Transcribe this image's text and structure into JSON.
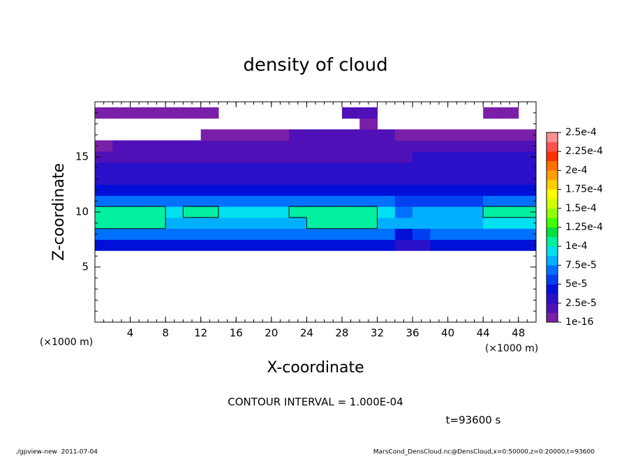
{
  "chart_data": {
    "type": "contour",
    "title": "density of cloud",
    "x_label": "X-coordinate",
    "y_label": "Z-coordinate",
    "x_unit": "(×1000 m)",
    "y_unit": "(×1000 m)",
    "time_label": "t=93600 s",
    "contour_label": "CONTOUR INTERVAL = 1.000E-04",
    "contour_interval": 0.0001,
    "footer_left": "./gpview-new  2011-07-04",
    "footer_right": "MarsCond_DensCloud.nc@DensCloud,x=0:50000,z=0:20000,t=93600",
    "xlim": [
      0,
      50
    ],
    "ylim": [
      0,
      20
    ],
    "xticks": [
      4,
      8,
      12,
      16,
      20,
      24,
      28,
      32,
      36,
      40,
      44,
      48
    ],
    "yticks": [
      5,
      10,
      15
    ],
    "minor_step": 1,
    "x": [
      1,
      3,
      5,
      7,
      9,
      11,
      13,
      15,
      17,
      19,
      21,
      23,
      25,
      27,
      29,
      31,
      33,
      35,
      37,
      39,
      41,
      43,
      45,
      47,
      49
    ],
    "z": [
      7,
      8,
      9,
      10,
      11,
      12,
      13,
      14,
      15,
      16,
      17,
      18,
      19
    ],
    "values": [
      [
        4e-05,
        4e-05,
        4e-05,
        4e-05,
        4e-05,
        4e-05,
        4e-05,
        4e-05,
        4e-05,
        4e-05,
        4e-05,
        4e-05,
        4e-05,
        4e-05,
        4e-05,
        4e-05,
        4e-05,
        3e-05,
        3e-05,
        4e-05,
        4e-05,
        4e-05,
        4e-05,
        4e-05,
        4e-05
      ],
      [
        7e-05,
        7e-05,
        7e-05,
        7e-05,
        7e-05,
        7e-05,
        7e-05,
        7e-05,
        7e-05,
        7e-05,
        7e-05,
        7e-05,
        7e-05,
        7e-05,
        7e-05,
        7e-05,
        7e-05,
        4e-05,
        5e-05,
        7e-05,
        7e-05,
        7e-05,
        7e-05,
        7e-05,
        7e-05
      ],
      [
        0.000105,
        0.000105,
        0.000105,
        0.000105,
        8.5e-05,
        8.5e-05,
        8.5e-05,
        8.5e-05,
        8.5e-05,
        8.5e-05,
        8.5e-05,
        8.5e-05,
        0.000105,
        0.000105,
        0.000105,
        0.000105,
        8.5e-05,
        8e-05,
        8e-05,
        8e-05,
        8e-05,
        8e-05,
        9e-05,
        9e-05,
        9e-05
      ],
      [
        0.00011,
        0.00011,
        0.00011,
        0.00011,
        9e-05,
        0.000102,
        0.000102,
        9e-05,
        9e-05,
        9e-05,
        9e-05,
        0.000102,
        0.00011,
        0.00011,
        0.00011,
        0.00011,
        9.5e-05,
        7e-05,
        8e-05,
        8e-05,
        8e-05,
        8e-05,
        0.000102,
        0.000102,
        0.000102
      ],
      [
        6.5e-05,
        6.5e-05,
        6.5e-05,
        6.5e-05,
        6.5e-05,
        6.5e-05,
        6.5e-05,
        6.5e-05,
        6.5e-05,
        6.5e-05,
        6.5e-05,
        6.5e-05,
        6.5e-05,
        6.5e-05,
        6.5e-05,
        6.5e-05,
        6.5e-05,
        5.5e-05,
        5.5e-05,
        5.5e-05,
        5.5e-05,
        5.5e-05,
        6.5e-05,
        6.5e-05,
        6.5e-05
      ],
      [
        4.5e-05,
        4.5e-05,
        4.5e-05,
        4.5e-05,
        4.5e-05,
        4.5e-05,
        4.5e-05,
        4.5e-05,
        4.5e-05,
        4.5e-05,
        4.5e-05,
        4.5e-05,
        4.5e-05,
        4.5e-05,
        4.5e-05,
        4.5e-05,
        4.5e-05,
        4.5e-05,
        4e-05,
        4e-05,
        4e-05,
        4e-05,
        4e-05,
        4e-05,
        4e-05
      ],
      [
        3.2e-05,
        3.2e-05,
        3.2e-05,
        3.2e-05,
        3.2e-05,
        3.2e-05,
        3.2e-05,
        3.2e-05,
        3.2e-05,
        3.2e-05,
        3.2e-05,
        3.2e-05,
        3.2e-05,
        3.2e-05,
        3.2e-05,
        3.2e-05,
        3.2e-05,
        3.2e-05,
        3.2e-05,
        3.2e-05,
        3.2e-05,
        3.2e-05,
        3.2e-05,
        3.2e-05,
        3.2e-05
      ],
      [
        2.5e-05,
        2.5e-05,
        2.5e-05,
        2.5e-05,
        2.5e-05,
        2.5e-05,
        2.5e-05,
        2.5e-05,
        2.5e-05,
        2.5e-05,
        2.5e-05,
        2.5e-05,
        2.5e-05,
        2.5e-05,
        2.5e-05,
        2.5e-05,
        2.5e-05,
        2.5e-05,
        3e-05,
        3e-05,
        3e-05,
        3e-05,
        3e-05,
        3e-05,
        3e-05
      ],
      [
        2.2e-05,
        2.2e-05,
        2.2e-05,
        2.2e-05,
        2.2e-05,
        2.2e-05,
        2e-05,
        2e-05,
        2e-05,
        2e-05,
        2e-05,
        2e-05,
        2e-05,
        2e-05,
        2e-05,
        2e-05,
        2e-05,
        2e-05,
        2.5e-05,
        2.5e-05,
        2.5e-05,
        2.5e-05,
        2.5e-05,
        2.5e-05,
        2.5e-05
      ],
      [
        1.2e-05,
        1.5e-05,
        1.5e-05,
        1.5e-05,
        1.5e-05,
        1.5e-05,
        1.5e-05,
        1.5e-05,
        1.5e-05,
        1.5e-05,
        1.5e-05,
        2e-05,
        2e-05,
        2e-05,
        2e-05,
        2e-05,
        1.5e-05,
        1.5e-05,
        1.5e-05,
        1.5e-05,
        1.5e-05,
        1.5e-05,
        1.5e-05,
        1.5e-05,
        1.5e-05
      ],
      [
        null,
        null,
        null,
        null,
        null,
        null,
        1e-05,
        1.2e-05,
        1.2e-05,
        1.2e-05,
        1.2e-05,
        1.5e-05,
        1.5e-05,
        1.5e-05,
        1.5e-05,
        1.5e-05,
        1.5e-05,
        1e-05,
        1e-05,
        1e-05,
        1e-05,
        1e-05,
        1e-05,
        1e-05,
        1e-05
      ],
      [
        null,
        null,
        null,
        null,
        null,
        null,
        null,
        null,
        null,
        null,
        null,
        null,
        null,
        null,
        null,
        1.2e-05,
        null,
        null,
        null,
        null,
        null,
        null,
        null,
        null,
        null
      ],
      [
        8e-06,
        8e-06,
        8e-06,
        8e-06,
        8e-06,
        8e-06,
        8e-06,
        null,
        null,
        null,
        null,
        null,
        null,
        null,
        1.5e-05,
        1.5e-05,
        null,
        null,
        null,
        null,
        null,
        null,
        8e-06,
        8e-06,
        null
      ]
    ],
    "colorbar_step": 1.25e-05,
    "colors": [
      "#7a1fa8",
      "#5010b8",
      "#2a10c8",
      "#0010d8",
      "#0040f0",
      "#0070ff",
      "#00b0ff",
      "#00e0f0",
      "#00f0a0",
      "#00e040",
      "#40ff00",
      "#90ff00",
      "#d0ff00",
      "#ffff00",
      "#ffd000",
      "#ffa000",
      "#ff7000",
      "#ff3000",
      "#ff5050",
      "#ff9090"
    ],
    "colorbar_ticks": [
      {
        "value": 1e-16,
        "label": "1e-16"
      },
      {
        "value": 2.5e-05,
        "label": "2.5e-5"
      },
      {
        "value": 5e-05,
        "label": "5e-5"
      },
      {
        "value": 7.5e-05,
        "label": "7.5e-5"
      },
      {
        "value": 0.0001,
        "label": "1e-4"
      },
      {
        "value": 0.000125,
        "label": "1.25e-4"
      },
      {
        "value": 0.00015,
        "label": "1.5e-4"
      },
      {
        "value": 0.000175,
        "label": "1.75e-4"
      },
      {
        "value": 0.0002,
        "label": "2e-4"
      },
      {
        "value": 0.000225,
        "label": "2.25e-4"
      },
      {
        "value": 0.00025,
        "label": "2.5e-4"
      }
    ]
  }
}
